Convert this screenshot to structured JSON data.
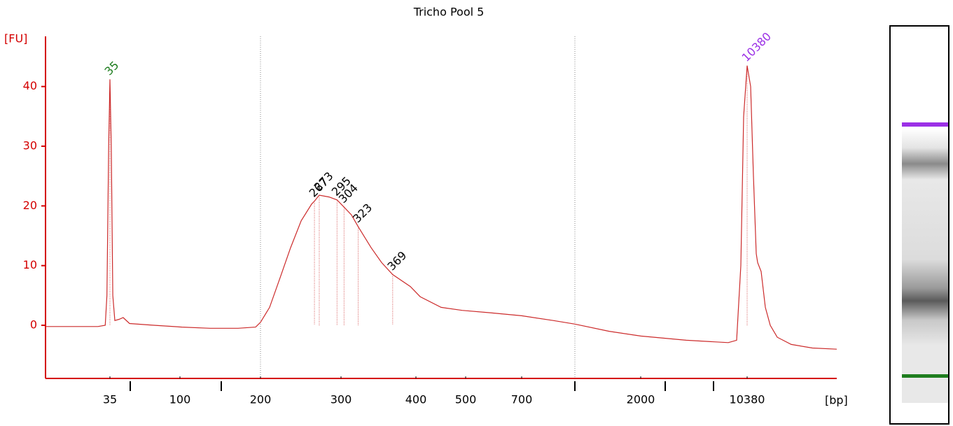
{
  "chart_data": {
    "type": "line",
    "title": "Tricho Pool 5",
    "y_label": "[FU]",
    "x_label": "[bp]",
    "ylim": [
      -8.9,
      48.4
    ],
    "yticks": [
      0,
      10,
      20,
      30,
      40
    ],
    "xlim": [
      20,
      20000
    ],
    "xticks": [
      35,
      100,
      200,
      300,
      400,
      500,
      700,
      2000,
      10380
    ],
    "xminor_ticks": [
      50,
      150,
      1000,
      3000,
      7000
    ],
    "region": [
      200,
      1000
    ],
    "series": [
      {
        "color": "#cc2b2b",
        "x": [
          20,
          25.7,
          32.2,
          33.9,
          34.3,
          34.7,
          35,
          36,
          37.1,
          38.6,
          41.7,
          44.8,
          49.5,
          73.9,
          102.5,
          136.4,
          171.4,
          193.8,
          200,
          211.3,
          224.4,
          237.4,
          250.5,
          263.5,
          267,
          273,
          285.2,
          295,
          304,
          313.9,
          323,
          340.2,
          354.2,
          369,
          392.5,
          408.4,
          450.7,
          493,
          587.5,
          700,
          877.8,
          1000,
          1520,
          2000,
          4740,
          8479,
          9324,
          9746,
          10028,
          10380,
          10756,
          11057,
          11358,
          11508,
          11884,
          12335,
          12862,
          13614,
          15118,
          17374,
          20000
        ],
        "values": [
          -0.2,
          -0.2,
          -0.2,
          0,
          5,
          30,
          41.2,
          30,
          5,
          0.8,
          1,
          1.3,
          0.3,
          0,
          -0.3,
          -0.5,
          -0.5,
          -0.3,
          0.5,
          3,
          8,
          13,
          17.5,
          20.3,
          20.8,
          21.8,
          21.5,
          21,
          19.8,
          18.5,
          16.5,
          13,
          10.5,
          8.5,
          6.5,
          4.8,
          3,
          2.5,
          2.1,
          1.6,
          0.8,
          0.2,
          -1,
          -1.8,
          -2.5,
          -2.9,
          -2.5,
          10,
          35,
          43.5,
          40,
          25,
          12,
          10.5,
          9,
          3,
          0,
          -2,
          -3.2,
          -3.8,
          -4
        ]
      }
    ],
    "annotations": [
      {
        "x": 35,
        "y": 41.2,
        "color": "#1e7d1e"
      },
      {
        "x": 267,
        "y": 20.8,
        "color": "#000000"
      },
      {
        "x": 273,
        "y": 21.8,
        "color": "#000000"
      },
      {
        "x": 295,
        "y": 21,
        "color": "#000000"
      },
      {
        "x": 304,
        "y": 19.8,
        "color": "#000000"
      },
      {
        "x": 323,
        "y": 16.5,
        "color": "#000000"
      },
      {
        "x": 369,
        "y": 8.5,
        "color": "#000000"
      },
      {
        "x": 10380,
        "y": 43.5,
        "color": "#9b30e6"
      }
    ],
    "axis_color": "#d40000"
  }
}
